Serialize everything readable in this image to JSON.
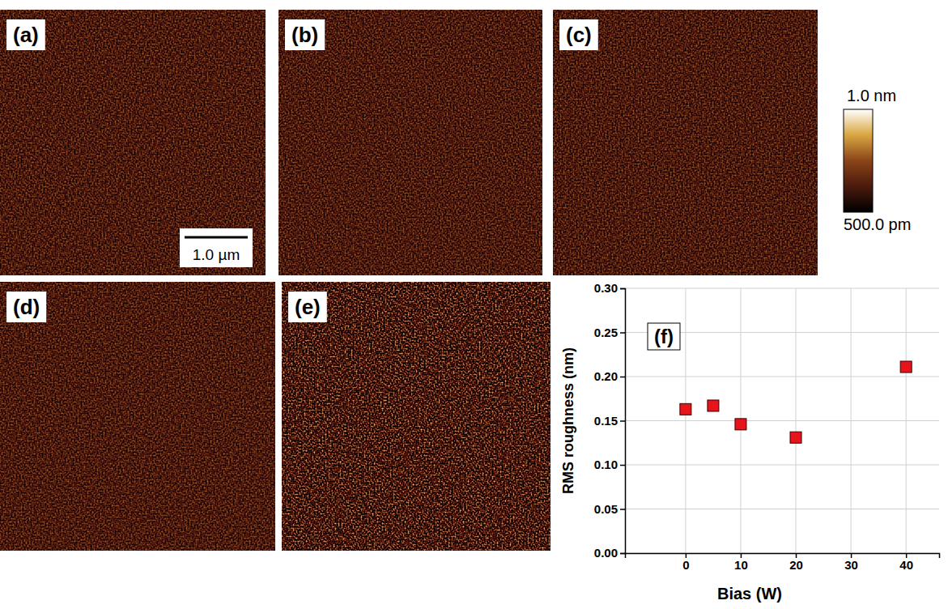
{
  "images": [
    {
      "label": "(a)"
    },
    {
      "label": "(b)"
    },
    {
      "label": "(c)"
    },
    {
      "label": "(d)"
    },
    {
      "label": "(e)"
    }
  ],
  "scale_bar": {
    "label": "1.0 µm"
  },
  "colorbar": {
    "range": [
      0.5,
      1.0
    ],
    "ticks": [
      {
        "value": 1.0,
        "label": "1.0 nm"
      },
      {
        "value": 0.5,
        "label": "500.0 pm"
      }
    ]
  },
  "chart_data": {
    "type": "scatter",
    "title": "(f)",
    "x_label": "Bias (W)",
    "y_label": "RMS roughness (nm)",
    "x": [
      0,
      5,
      10,
      20,
      40
    ],
    "values": [
      0.163,
      0.167,
      0.146,
      0.131,
      0.211
    ],
    "xlim": [
      -11,
      46
    ],
    "ylim": [
      0,
      0.3
    ],
    "xticks": [
      0,
      10,
      20,
      30,
      40
    ],
    "yticks": [
      {
        "value": 0,
        "label": "0.00"
      },
      {
        "value": 0.05,
        "label": "0.05"
      },
      {
        "value": 0.1,
        "label": "0.10"
      },
      {
        "value": 0.15,
        "label": "0.15"
      },
      {
        "value": 0.2,
        "label": "0.20"
      },
      {
        "value": 0.25,
        "label": "0.25"
      },
      {
        "value": 0.3,
        "label": "0.30"
      }
    ],
    "grid": true,
    "marker": "square",
    "color": "#e8141c"
  }
}
